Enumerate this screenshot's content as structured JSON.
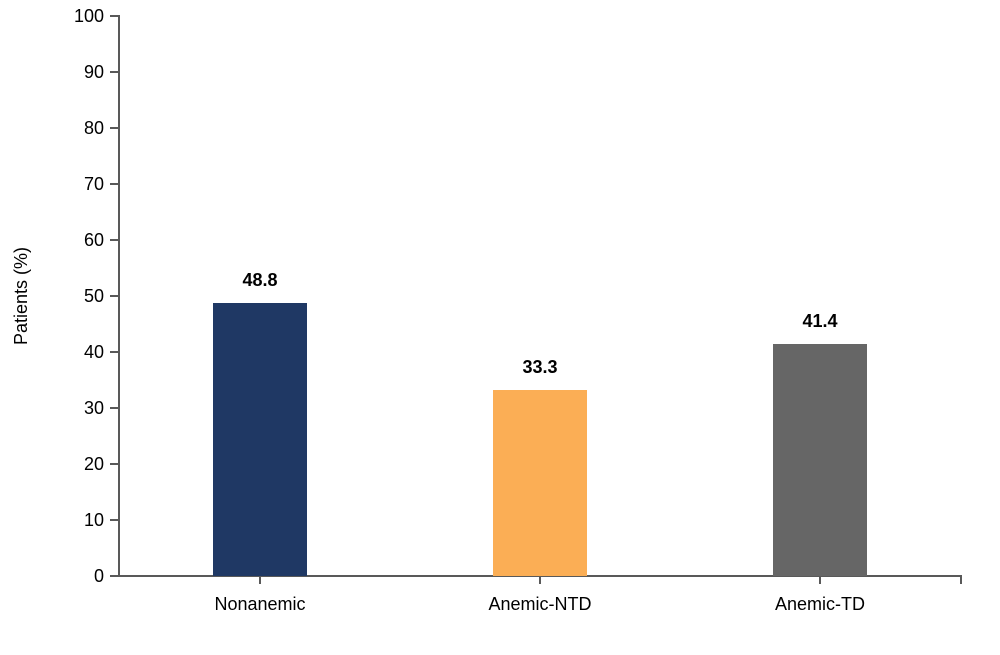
{
  "chart_data": {
    "type": "bar",
    "title": "",
    "xlabel": "",
    "ylabel": "Patients (%)",
    "categories": [
      "Nonanemic",
      "Anemic-NTD",
      "Anemic-TD"
    ],
    "values": [
      48.8,
      33.3,
      41.4
    ],
    "value_labels": [
      "48.8",
      "33.3",
      "41.4"
    ],
    "bar_colors": [
      "#1F3864",
      "#FBAE55",
      "#666666"
    ],
    "ylim": [
      0,
      100
    ],
    "ytick_interval": 10,
    "ytick_labels": [
      "0",
      "10",
      "20",
      "30",
      "40",
      "50",
      "60",
      "70",
      "80",
      "90",
      "100"
    ],
    "grid": false,
    "legend": "none",
    "axis_color": "#595959",
    "text_color": "#000000"
  }
}
